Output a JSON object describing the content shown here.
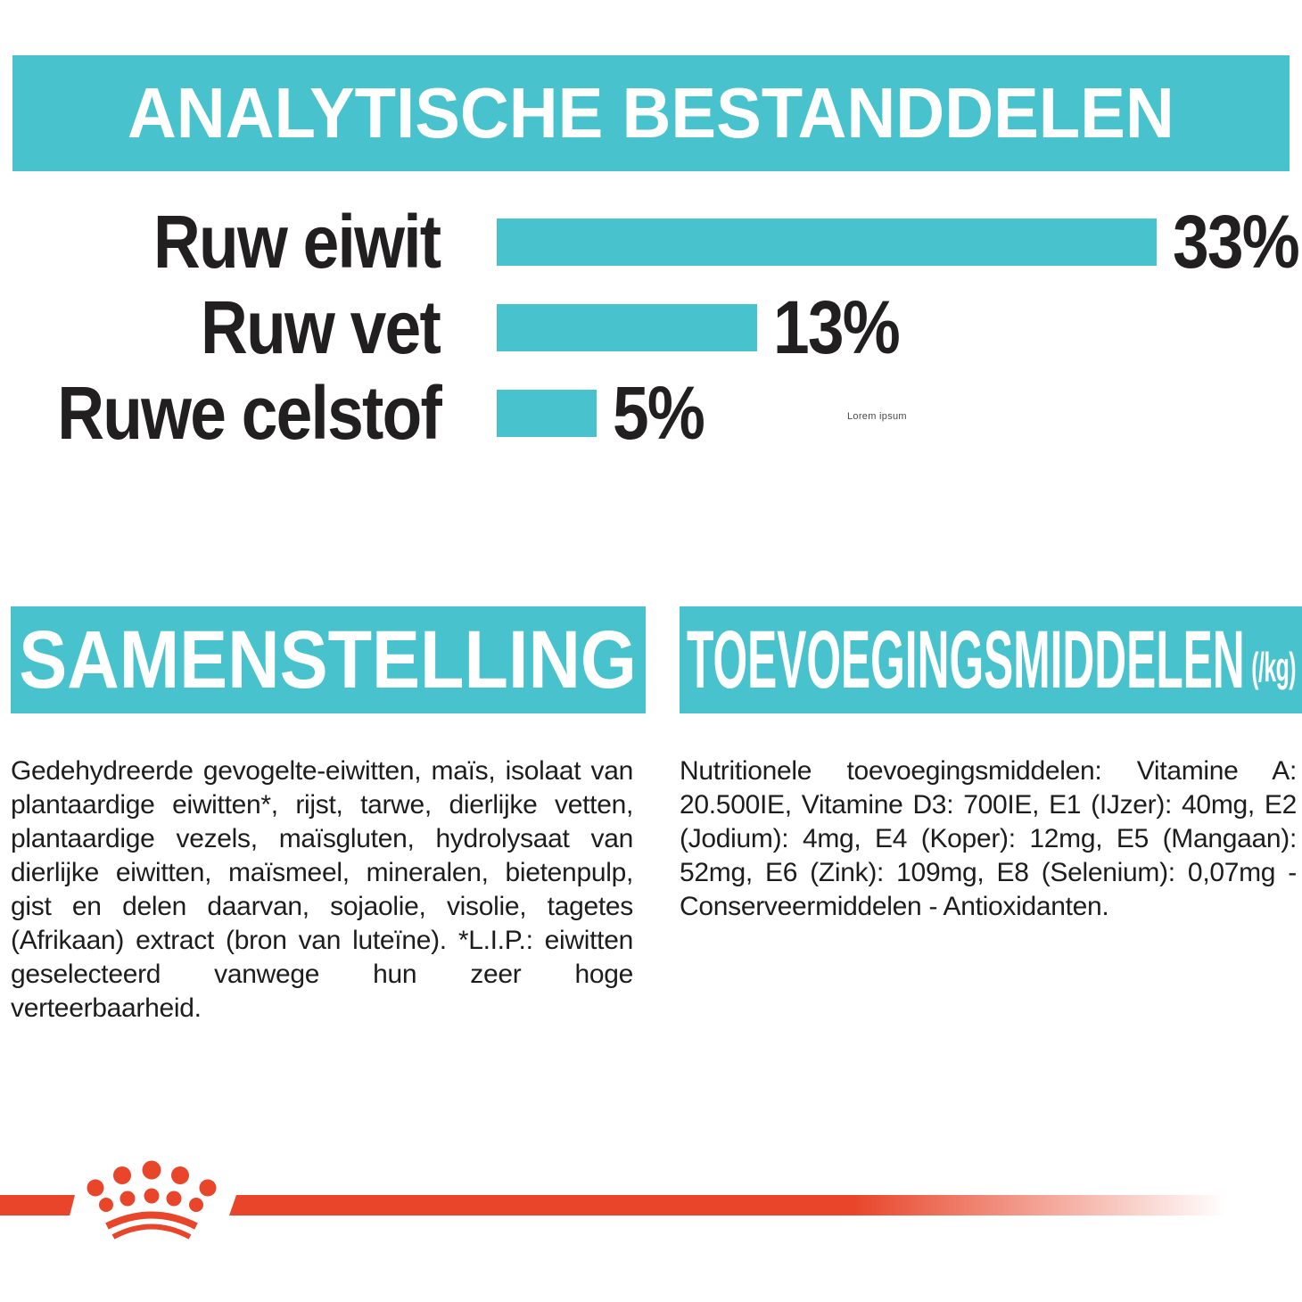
{
  "colors": {
    "teal": "#48C3CD",
    "red": "#E8452A",
    "text_dark": "#221F20",
    "banner_text": "#FFFFFF",
    "background": "#FFFFFF"
  },
  "header": {
    "title": "ANALYTISCHE BESTANDDELEN"
  },
  "chart_data": {
    "type": "bar",
    "orientation": "horizontal",
    "categories": [
      "Ruw eiwit",
      "Ruw vet",
      "Ruwe celstof"
    ],
    "values": [
      33,
      13,
      5
    ],
    "labels": [
      "33%",
      "13%",
      "5%"
    ],
    "unit": "%",
    "xlim": [
      0,
      33
    ],
    "bar_color": "#48C3CD",
    "grid": false,
    "legend": false,
    "watermark": "Lorem ipsum"
  },
  "sections": {
    "composition": {
      "title": "SAMENSTELLING",
      "body": "Gedehydreerde gevogelte-eiwitten, maïs, isolaat van plantaardige eiwitten*, rijst, tarwe, dierlijke vetten, plantaardige vezels, maïsgluten, hydrolysaat van dierlijke eiwitten, maïsmeel, mineralen, bietenpulp, gist en delen daarvan, sojaolie, visolie, tagetes (Afrikaan) extract (bron van luteïne). *L.I.P.: eiwitten geselecteerd vanwege hun zeer hoge verteerbaarheid."
    },
    "additives": {
      "title": "TOEVOEGINGSMIDDELEN",
      "title_suffix": "(/kg)",
      "body": "Nutritionele toevoegingsmiddelen: Vitamine A: 20.500IE, Vitamine D3: 700IE, E1 (IJzer): 40mg, E2 (Jodium): 4mg, E4 (Koper): 12mg, E5 (Mangaan): 52mg, E6 (Zink): 109mg, E8 (Selenium): 0,07mg - Conserveermiddelen - Antioxidanten."
    }
  },
  "footer": {
    "logo_icon": "royal-canin-crown-icon"
  }
}
